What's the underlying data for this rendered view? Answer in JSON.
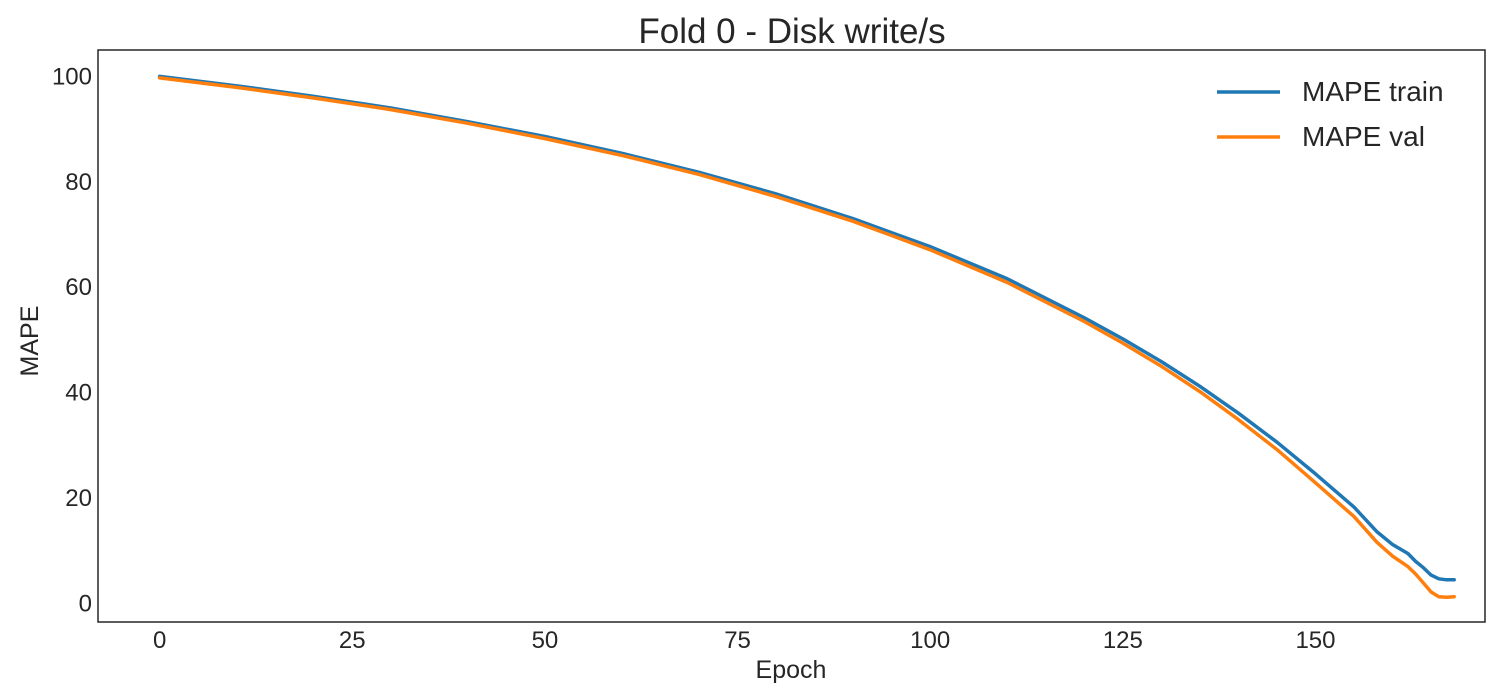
{
  "chart_data": {
    "type": "line",
    "title": "Fold 0 - Disk write/s",
    "xlabel": "Epoch",
    "ylabel": "MAPE",
    "xlim": [
      -8,
      172
    ],
    "ylim": [
      -3.5,
      105
    ],
    "xticks": [
      0,
      25,
      50,
      75,
      100,
      125,
      150
    ],
    "yticks": [
      0,
      20,
      40,
      60,
      80,
      100
    ],
    "grid": false,
    "legend_position": "top-right",
    "series": [
      {
        "name": "MAPE train",
        "color": "#1f77b4",
        "points": [
          [
            0,
            100
          ],
          [
            10,
            98.2
          ],
          [
            20,
            96.2
          ],
          [
            30,
            94
          ],
          [
            40,
            91.4
          ],
          [
            50,
            88.6
          ],
          [
            60,
            85.4
          ],
          [
            70,
            81.8
          ],
          [
            80,
            77.7
          ],
          [
            90,
            73
          ],
          [
            100,
            67.7
          ],
          [
            110,
            61.6
          ],
          [
            120,
            54.2
          ],
          [
            125,
            50.2
          ],
          [
            130,
            45.9
          ],
          [
            135,
            41.2
          ],
          [
            140,
            36.1
          ],
          [
            145,
            30.6
          ],
          [
            150,
            24.6
          ],
          [
            155,
            18.3
          ],
          [
            158,
            13.6
          ],
          [
            160,
            11.2
          ],
          [
            162,
            9.5
          ],
          [
            163,
            8
          ],
          [
            164,
            6.8
          ],
          [
            165,
            5.4
          ],
          [
            166,
            4.7
          ],
          [
            167,
            4.5
          ],
          [
            168,
            4.5
          ]
        ]
      },
      {
        "name": "MAPE val",
        "color": "#ff7f0e",
        "points": [
          [
            0,
            99.7
          ],
          [
            10,
            97.9
          ],
          [
            20,
            95.9
          ],
          [
            30,
            93.7
          ],
          [
            40,
            91.1
          ],
          [
            50,
            88.2
          ],
          [
            60,
            85
          ],
          [
            70,
            81.4
          ],
          [
            80,
            77.2
          ],
          [
            90,
            72.5
          ],
          [
            100,
            67.1
          ],
          [
            110,
            60.9
          ],
          [
            120,
            53.5
          ],
          [
            125,
            49.4
          ],
          [
            130,
            45
          ],
          [
            135,
            40.2
          ],
          [
            140,
            34.9
          ],
          [
            145,
            29.2
          ],
          [
            150,
            22.9
          ],
          [
            155,
            16.5
          ],
          [
            158,
            11.6
          ],
          [
            160,
            9
          ],
          [
            162,
            7
          ],
          [
            163,
            5.6
          ],
          [
            164,
            3.9
          ],
          [
            165,
            2.2
          ],
          [
            166,
            1.3
          ],
          [
            167,
            1.2
          ],
          [
            168,
            1.3
          ]
        ]
      }
    ]
  }
}
